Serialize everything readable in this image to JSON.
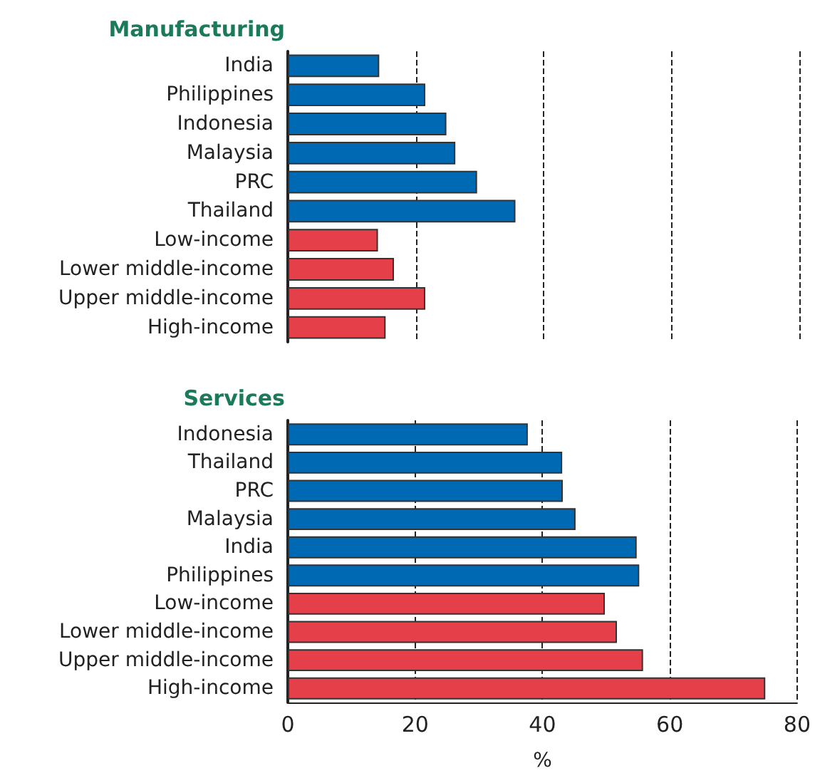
{
  "chart_data": [
    {
      "type": "bar",
      "orientation": "horizontal",
      "title": "Manufacturing",
      "categories": [
        "India",
        "Philippines",
        "Indonesia",
        "Malaysia",
        "PRC",
        "Thailand",
        "Low-income",
        "Lower middle-income",
        "Upper middle-income",
        "High-income"
      ],
      "values": [
        14.3,
        21.5,
        24.8,
        26.2,
        29.6,
        35.6,
        14.1,
        16.6,
        21.5,
        15.3
      ],
      "colors": [
        "#0069b4",
        "#0069b4",
        "#0069b4",
        "#0069b4",
        "#0069b4",
        "#0069b4",
        "#e5404a",
        "#e5404a",
        "#e5404a",
        "#e5404a"
      ],
      "xlim": [
        0,
        80
      ],
      "xticks": [
        0,
        20,
        40,
        60,
        80
      ],
      "grid": "x",
      "tick_labels": "y"
    },
    {
      "type": "bar",
      "orientation": "horizontal",
      "title": "Services",
      "xlabel": "%",
      "categories": [
        "Indonesia",
        "Thailand",
        "PRC",
        "Malaysia",
        "India",
        "Philippines",
        "Low-income",
        "Lower middle-income",
        "Upper middle-income",
        "High-income"
      ],
      "values": [
        37.7,
        43.1,
        43.2,
        45.2,
        54.8,
        55.2,
        49.8,
        51.7,
        55.8,
        75.0
      ],
      "colors": [
        "#0069b4",
        "#0069b4",
        "#0069b4",
        "#0069b4",
        "#0069b4",
        "#0069b4",
        "#e5404a",
        "#e5404a",
        "#e5404a",
        "#e5404a"
      ],
      "xlim": [
        0,
        80
      ],
      "xticks": [
        0,
        20,
        40,
        60,
        80
      ],
      "grid": "x"
    }
  ]
}
